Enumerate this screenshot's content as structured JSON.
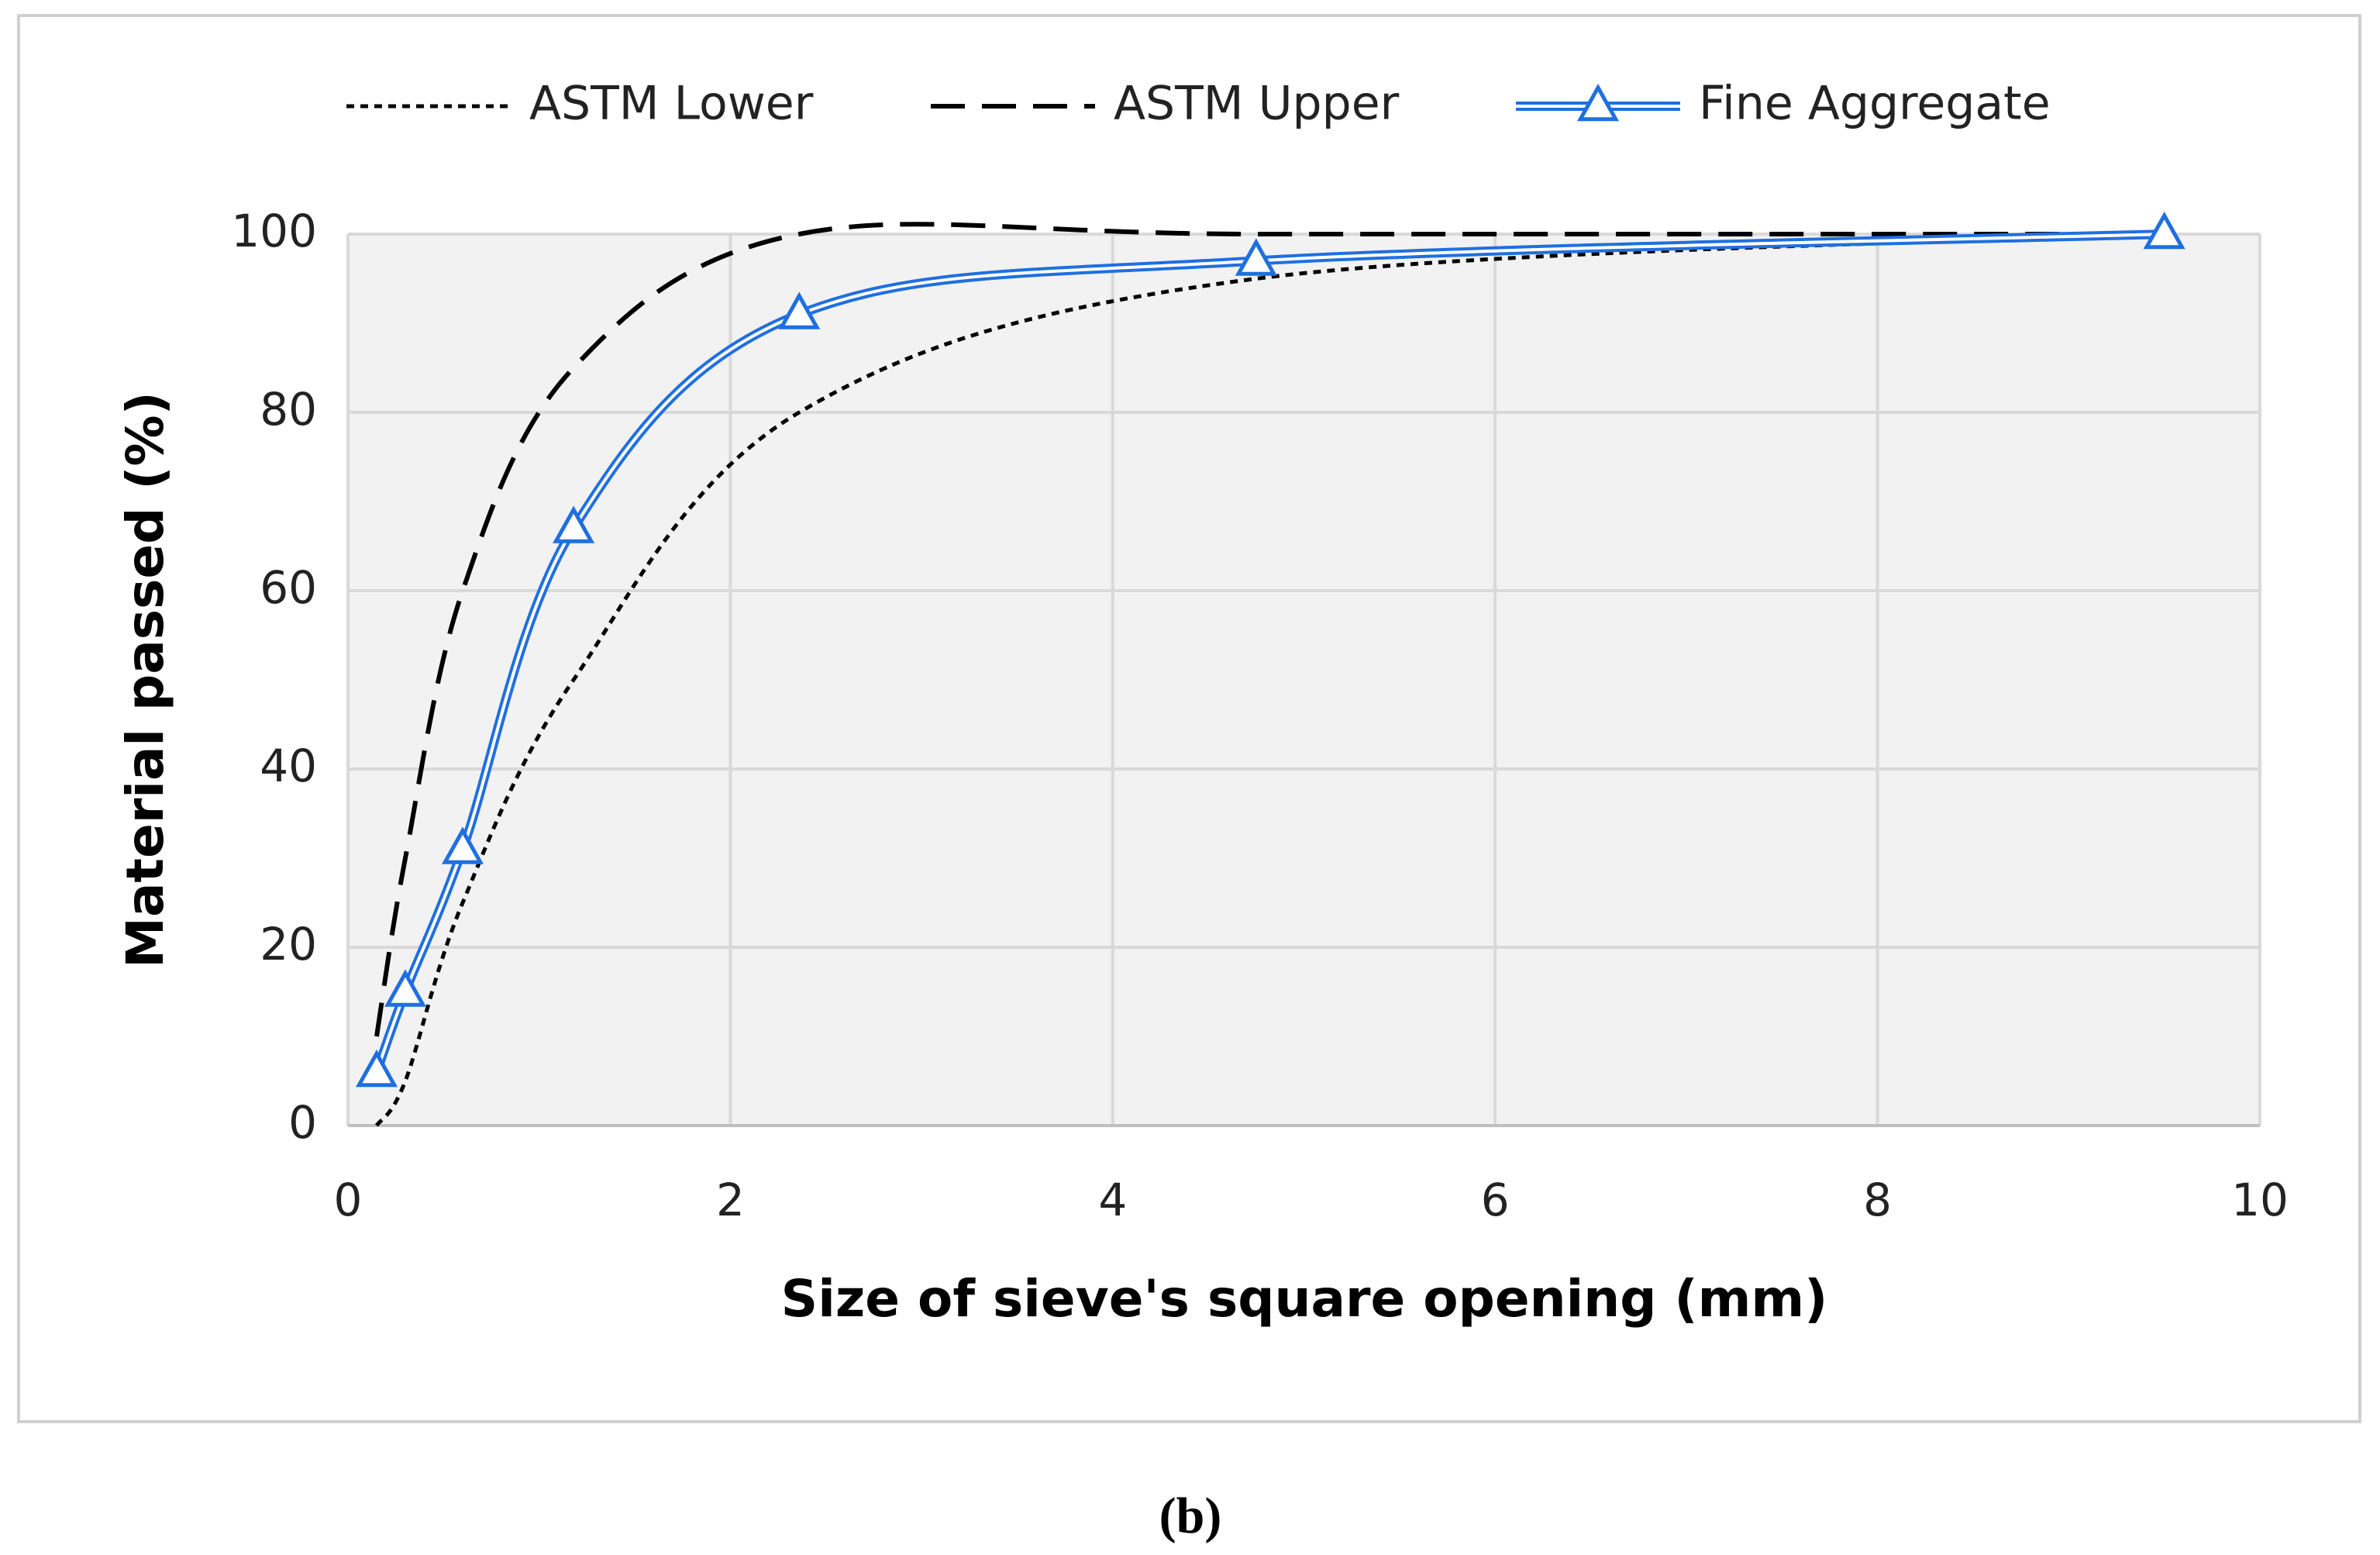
{
  "chart_data": {
    "type": "line",
    "xlabel": "Size of sieve's square opening (mm)",
    "ylabel": "Material passed (%)",
    "caption": "(b)",
    "xlim": [
      0,
      10
    ],
    "xticks": [
      0,
      2,
      4,
      6,
      8,
      10
    ],
    "ylim": [
      0,
      100
    ],
    "yticks": [
      0,
      20,
      40,
      60,
      80,
      100
    ],
    "grid": true,
    "legend": "top",
    "smooth": true,
    "series": [
      {
        "name": "ASTM Lower",
        "color": "#000000",
        "dash": "dotted",
        "x": [
          0.15,
          0.3,
          0.6,
          1.18,
          2.36,
          4.75,
          9.5
        ],
        "values": [
          0,
          5,
          25,
          50,
          80,
          95,
          100
        ]
      },
      {
        "name": "ASTM Upper",
        "color": "#000000",
        "dash": "dashed",
        "x": [
          0.15,
          0.3,
          0.6,
          1.18,
          2.36,
          4.75,
          9.5
        ],
        "values": [
          10,
          30,
          60,
          85,
          100,
          100,
          100
        ]
      },
      {
        "name": "Fine Aggregate",
        "color": "#1f6fe0",
        "dash": "double",
        "marker": "triangle",
        "x": [
          0.15,
          0.3,
          0.6,
          1.18,
          2.36,
          4.75,
          9.5
        ],
        "values": [
          6,
          15,
          31,
          67,
          91,
          97,
          100
        ]
      }
    ]
  }
}
